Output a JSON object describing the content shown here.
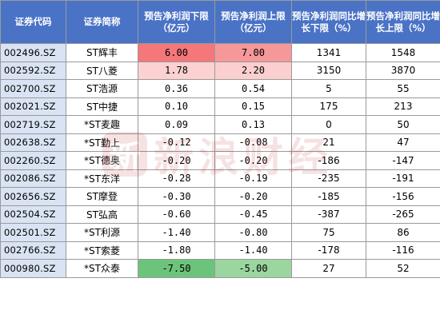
{
  "headers": [
    "证券代码",
    "证券简称",
    "预告净利润下限（亿元）",
    "预告净利润上限（亿元）",
    "预告净利润同比增长下限（%）",
    "预告净利润同比增长上限（%）"
  ],
  "rows": [
    {
      "code": "002496.SZ",
      "name": "ST辉丰",
      "low": "6.00",
      "high": "7.00",
      "gl": "1341",
      "gh": "1548",
      "c_low": "#f4777a",
      "c_high": "#f6979a"
    },
    {
      "code": "002592.SZ",
      "name": "ST八菱",
      "low": "1.78",
      "high": "2.20",
      "gl": "3150",
      "gh": "3870",
      "c_low": "#fbd1d2",
      "c_high": "#fbcfd0"
    },
    {
      "code": "002700.SZ",
      "name": "ST浩源",
      "low": "0.36",
      "high": "0.54",
      "gl": "5",
      "gh": "55",
      "c_low": "#ffffff",
      "c_high": "#ffffff"
    },
    {
      "code": "002021.SZ",
      "name": "ST中捷",
      "low": "0.10",
      "high": "0.15",
      "gl": "175",
      "gh": "213",
      "c_low": "#ffffff",
      "c_high": "#ffffff"
    },
    {
      "code": "002719.SZ",
      "name": "*ST麦趣",
      "low": "0.09",
      "high": "0.13",
      "gl": "0",
      "gh": "50",
      "c_low": "#ffffff",
      "c_high": "#ffffff"
    },
    {
      "code": "002638.SZ",
      "name": "*ST勤上",
      "low": "-0.12",
      "high": "-0.08",
      "gl": "21",
      "gh": "47",
      "c_low": "#ffffff",
      "c_high": "#ffffff"
    },
    {
      "code": "002260.SZ",
      "name": "*ST德奥",
      "low": "-0.20",
      "high": "-0.20",
      "gl": "-186",
      "gh": "-147",
      "c_low": "#ffffff",
      "c_high": "#ffffff"
    },
    {
      "code": "002086.SZ",
      "name": "*ST东洋",
      "low": "-0.28",
      "high": "-0.19",
      "gl": "-235",
      "gh": "-191",
      "c_low": "#ffffff",
      "c_high": "#ffffff"
    },
    {
      "code": "002656.SZ",
      "name": "ST摩登",
      "low": "-0.30",
      "high": "-0.20",
      "gl": "-185",
      "gh": "-156",
      "c_low": "#ffffff",
      "c_high": "#ffffff"
    },
    {
      "code": "002504.SZ",
      "name": "ST弘高",
      "low": "-0.60",
      "high": "-0.45",
      "gl": "-387",
      "gh": "-265",
      "c_low": "#ffffff",
      "c_high": "#ffffff"
    },
    {
      "code": "002501.SZ",
      "name": "*ST利源",
      "low": "-1.40",
      "high": "-0.80",
      "gl": "75",
      "gh": "86",
      "c_low": "#ffffff",
      "c_high": "#ffffff"
    },
    {
      "code": "002766.SZ",
      "name": "*ST索菱",
      "low": "-1.80",
      "high": "-1.40",
      "gl": "-178",
      "gh": "-116",
      "c_low": "#ffffff",
      "c_high": "#ffffff"
    },
    {
      "code": "000980.SZ",
      "name": "*ST众泰",
      "low": "-7.50",
      "high": "-5.00",
      "gl": "27",
      "gh": "52",
      "c_low": "#6cc47a",
      "c_high": "#9bd59f"
    }
  ],
  "colors": {
    "header_bg": "#4a73c6",
    "code_bg": "#d9e3f3"
  },
  "watermark": {
    "logo_glyph": "新",
    "text": "新浪财经"
  }
}
